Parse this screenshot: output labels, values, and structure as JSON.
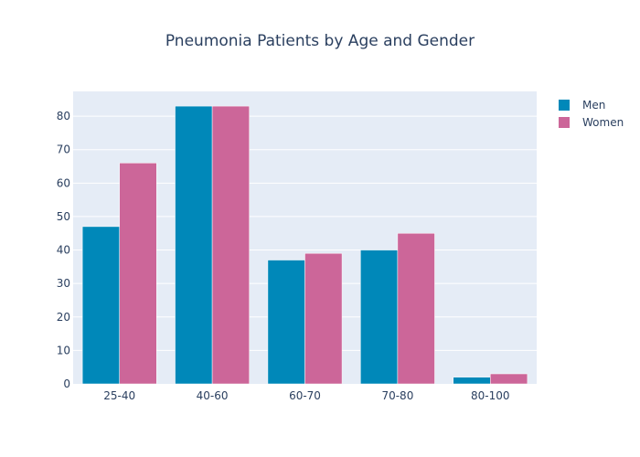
{
  "chart_data": {
    "type": "bar",
    "title": "Pneumonia Patients by Age and Gender",
    "xlabel": "",
    "ylabel": "",
    "categories": [
      "25-40",
      "40-60",
      "60-70",
      "70-80",
      "80-100"
    ],
    "series": [
      {
        "name": "Men",
        "values": [
          47,
          83,
          37,
          40,
          2
        ],
        "color": "#0088b9"
      },
      {
        "name": "Women",
        "values": [
          66,
          83,
          39,
          45,
          3
        ],
        "color": "#cc6699"
      }
    ],
    "ylim": [
      0,
      87.4
    ],
    "yticks": [
      0,
      10,
      20,
      30,
      40,
      50,
      60,
      70,
      80
    ],
    "grid": true,
    "plot_background": "#e5ecf6",
    "legend_position": "top-right"
  }
}
